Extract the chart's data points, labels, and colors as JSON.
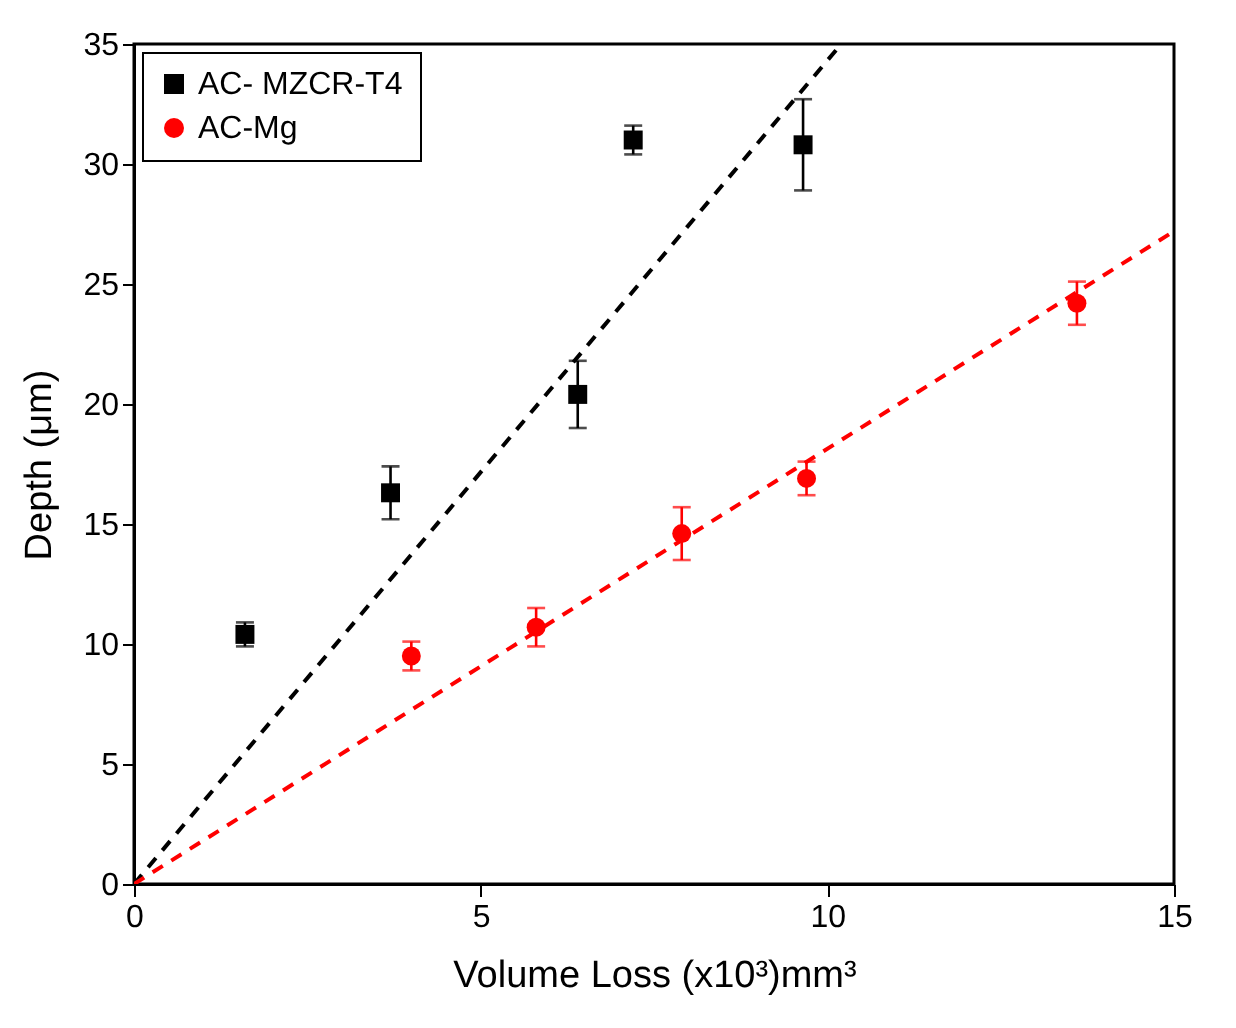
{
  "chart_data": {
    "type": "scatter",
    "xlabel": "Volume Loss (x10³)mm³",
    "ylabel": "Depth (μm)",
    "xlim": [
      0,
      15
    ],
    "ylim": [
      0,
      35
    ],
    "xticks": [
      0,
      5,
      10,
      15
    ],
    "yticks": [
      0,
      5,
      10,
      15,
      20,
      25,
      30,
      35
    ],
    "legend": "top left",
    "series": [
      {
        "name": "AC- MZCR-T4",
        "color": "#000000",
        "marker": "square",
        "x": [
          1.6,
          3.7,
          6.4,
          7.2,
          9.65
        ],
        "values": [
          10.4,
          16.3,
          20.4,
          31.0,
          30.8
        ],
        "errors": [
          0.5,
          1.1,
          1.4,
          0.6,
          [
            28.9,
            32.7
          ]
        ]
      },
      {
        "name": "AC-Mg",
        "color": "#ff0000",
        "marker": "circle",
        "x": [
          4.0,
          5.8,
          7.9,
          9.7,
          13.6
        ],
        "values": [
          9.5,
          10.7,
          14.6,
          16.9,
          24.2
        ],
        "errors": [
          0.6,
          0.8,
          1.1,
          0.7,
          0.9
        ]
      },
      {
        "type": "line",
        "color": "#000000",
        "line_style": "dashed",
        "x": [
          0,
          10.2
        ],
        "values": [
          0,
          35
        ]
      },
      {
        "type": "line",
        "color": "#ff0000",
        "line_style": "dashed",
        "x": [
          0,
          15
        ],
        "values": [
          0,
          27.2
        ]
      }
    ]
  }
}
